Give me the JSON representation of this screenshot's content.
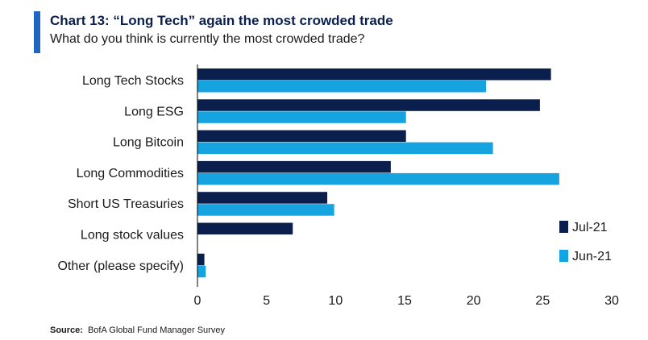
{
  "header": {
    "title": "Chart 13: “Long Tech” again the most crowded trade",
    "subtitle": "What do you think is currently the most crowded trade?"
  },
  "footer": {
    "source_label": "Source:",
    "source_text": "BofA Global Fund Manager Survey"
  },
  "colors": {
    "accent": "#1f66c1",
    "jul": "#0b1f4d",
    "jun": "#16a4e0"
  },
  "chart_data": {
    "type": "bar",
    "orientation": "horizontal",
    "title": "Chart 13: “Long Tech” again the most crowded trade",
    "subtitle": "What do you think is currently the most crowded trade?",
    "categories": [
      "Long Tech Stocks",
      "Long ESG",
      "Long Bitcoin",
      "Long Commodities",
      "Short US Treasuries",
      "Long stock values",
      "Other (please specify)"
    ],
    "series": [
      {
        "name": "Jul-21",
        "values": [
          25.6,
          24.8,
          15.1,
          14.0,
          9.4,
          6.9,
          0.5
        ]
      },
      {
        "name": "Jun-21",
        "values": [
          20.9,
          15.1,
          21.4,
          26.2,
          9.9,
          null,
          0.6
        ]
      }
    ],
    "xlim": [
      0,
      30
    ],
    "xticks": [
      0,
      5,
      10,
      15,
      20,
      25,
      30
    ],
    "xlabel": "",
    "ylabel": "",
    "grid": false,
    "legend_position": "right"
  }
}
